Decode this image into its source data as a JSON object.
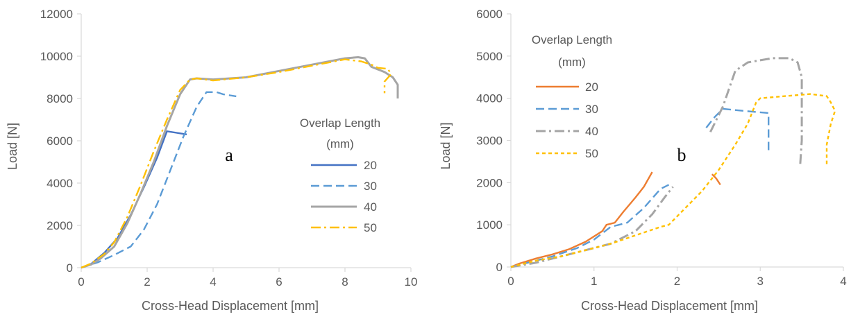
{
  "colors": {
    "20": "#4472C4",
    "30": "#5B9BD5",
    "40": "#A5A5A5",
    "50": "#FFC000",
    "20b": "#ED7D31",
    "axis": "#D9D9D9",
    "text": "#595959"
  },
  "chart_data": [
    {
      "type": "line",
      "panel_label": "a",
      "xlabel": "Cross-Head Displacement [mm]",
      "ylabel": "Load [N]",
      "xlim": [
        0,
        10
      ],
      "ylim": [
        0,
        12000
      ],
      "x_ticks": [
        0,
        2,
        4,
        6,
        8,
        10
      ],
      "y_ticks": [
        0,
        2000,
        4000,
        6000,
        8000,
        10000,
        12000
      ],
      "grid": false,
      "legend": {
        "title_line1": "Overlap Length",
        "title_line2": "(mm)",
        "placement": "center-right"
      },
      "series": [
        {
          "name": "20",
          "color_key": "20",
          "dash": "solid",
          "points": [
            [
              0,
              0
            ],
            [
              0.3,
              180
            ],
            [
              0.7,
              700
            ],
            [
              1.1,
              1400
            ],
            [
              1.5,
              2500
            ],
            [
              1.9,
              3800
            ],
            [
              2.3,
              5200
            ],
            [
              2.6,
              6450
            ],
            [
              3.0,
              6350
            ],
            [
              3.2,
              6300
            ]
          ]
        },
        {
          "name": "30",
          "color_key": "30",
          "dash": "dash",
          "points": [
            [
              0,
              0
            ],
            [
              0.5,
              250
            ],
            [
              1.0,
              600
            ],
            [
              1.5,
              1000
            ],
            [
              1.9,
              1800
            ],
            [
              2.3,
              3000
            ],
            [
              2.7,
              4600
            ],
            [
              3.1,
              6200
            ],
            [
              3.5,
              7600
            ],
            [
              3.8,
              8300
            ],
            [
              4.1,
              8300
            ],
            [
              4.3,
              8200
            ],
            [
              4.7,
              8100
            ]
          ]
        },
        {
          "name": "40",
          "color_key": "40",
          "dash": "solid",
          "points": [
            [
              0,
              0
            ],
            [
              0.3,
              150
            ],
            [
              0.6,
              450
            ],
            [
              1.0,
              1000
            ],
            [
              1.4,
              2100
            ],
            [
              1.8,
              3500
            ],
            [
              2.2,
              5000
            ],
            [
              2.6,
              6700
            ],
            [
              3.0,
              8200
            ],
            [
              3.3,
              8900
            ],
            [
              3.5,
              8950
            ],
            [
              4.0,
              8900
            ],
            [
              5.0,
              9000
            ],
            [
              6.0,
              9300
            ],
            [
              7.0,
              9600
            ],
            [
              8.0,
              9900
            ],
            [
              8.4,
              9950
            ],
            [
              8.6,
              9900
            ],
            [
              8.8,
              9500
            ],
            [
              9.2,
              9250
            ],
            [
              9.45,
              9000
            ],
            [
              9.6,
              8650
            ],
            [
              9.6,
              8000
            ]
          ]
        },
        {
          "name": "50",
          "color_key": "50",
          "dash": "dashdot",
          "points": [
            [
              0,
              0
            ],
            [
              0.3,
              200
            ],
            [
              0.7,
              650
            ],
            [
              1.0,
              1200
            ],
            [
              1.4,
              2400
            ],
            [
              1.8,
              3900
            ],
            [
              2.2,
              5500
            ],
            [
              2.6,
              7000
            ],
            [
              3.0,
              8400
            ],
            [
              3.3,
              8900
            ],
            [
              3.5,
              8950
            ],
            [
              4.0,
              8850
            ],
            [
              5.0,
              9000
            ],
            [
              6.0,
              9250
            ],
            [
              7.0,
              9550
            ],
            [
              8.0,
              9850
            ],
            [
              8.5,
              9750
            ],
            [
              8.8,
              9600
            ],
            [
              9.0,
              9450
            ],
            [
              9.3,
              9400
            ],
            [
              9.4,
              9150
            ],
            [
              9.2,
              8800
            ],
            [
              9.2,
              8250
            ]
          ]
        }
      ]
    },
    {
      "type": "line",
      "panel_label": "b",
      "xlabel": "Cross-Head Displacement [mm]",
      "ylabel": "Load [N]",
      "xlim": [
        0,
        4
      ],
      "ylim": [
        0,
        6000
      ],
      "x_ticks": [
        0,
        1,
        2,
        3,
        4
      ],
      "y_ticks": [
        0,
        1000,
        2000,
        3000,
        4000,
        5000,
        6000
      ],
      "grid": false,
      "legend": {
        "title_line1": "Overlap Length",
        "title_line2": "(mm)",
        "placement": "top-left"
      },
      "series": [
        {
          "name": "20",
          "color_key": "20b",
          "dash": "solid",
          "segments": [
            [
              [
                0,
                0
              ],
              [
                0.1,
                80
              ],
              [
                0.3,
                200
              ],
              [
                0.5,
                300
              ],
              [
                0.7,
                420
              ],
              [
                0.9,
                600
              ],
              [
                1.1,
                850
              ],
              [
                1.15,
                1000
              ],
              [
                1.25,
                1050
              ],
              [
                1.35,
                1300
              ],
              [
                1.5,
                1650
              ],
              [
                1.6,
                1900
              ],
              [
                1.7,
                2250
              ]
            ],
            [
              [
                2.42,
                2200
              ],
              [
                2.47,
                2100
              ],
              [
                2.52,
                1950
              ]
            ]
          ]
        },
        {
          "name": "30",
          "color_key": "30",
          "dash": "dash",
          "segments": [
            [
              [
                0,
                0
              ],
              [
                0.2,
                100
              ],
              [
                0.5,
                250
              ],
              [
                0.8,
                450
              ],
              [
                1.0,
                650
              ],
              [
                1.2,
                950
              ],
              [
                1.4,
                1050
              ],
              [
                1.6,
                1400
              ],
              [
                1.8,
                1850
              ],
              [
                1.9,
                1950
              ]
            ],
            [
              [
                2.35,
                3300
              ],
              [
                2.45,
                3550
              ],
              [
                2.55,
                3750
              ],
              [
                2.8,
                3700
              ],
              [
                3.1,
                3650
              ],
              [
                3.1,
                2700
              ]
            ]
          ]
        },
        {
          "name": "40",
          "color_key": "40",
          "dash": "dashdot",
          "segments": [
            [
              [
                0,
                0
              ],
              [
                0.3,
                100
              ],
              [
                0.6,
                250
              ],
              [
                0.9,
                400
              ],
              [
                1.2,
                550
              ],
              [
                1.5,
                850
              ],
              [
                1.7,
                1250
              ],
              [
                1.85,
                1650
              ],
              [
                1.95,
                1900
              ]
            ],
            [
              [
                2.4,
                3200
              ],
              [
                2.55,
                3800
              ],
              [
                2.7,
                4650
              ],
              [
                2.85,
                4850
              ],
              [
                3.0,
                4900
              ],
              [
                3.15,
                4950
              ],
              [
                3.35,
                4950
              ],
              [
                3.45,
                4850
              ],
              [
                3.5,
                4500
              ],
              [
                3.5,
                3000
              ],
              [
                3.48,
                2400
              ]
            ]
          ]
        },
        {
          "name": "50",
          "color_key": "50",
          "dash": "dot",
          "segments": [
            [
              [
                0,
                0
              ],
              [
                0.3,
                150
              ],
              [
                0.6,
                250
              ],
              [
                0.9,
                400
              ],
              [
                1.2,
                550
              ],
              [
                1.5,
                750
              ],
              [
                1.8,
                950
              ],
              [
                1.9,
                1000
              ],
              [
                2.1,
                1400
              ],
              [
                2.3,
                1800
              ],
              [
                2.5,
                2300
              ],
              [
                2.7,
                2900
              ],
              [
                2.85,
                3400
              ],
              [
                2.95,
                3900
              ],
              [
                3.0,
                4000
              ],
              [
                3.3,
                4050
              ],
              [
                3.6,
                4100
              ],
              [
                3.8,
                4050
              ],
              [
                3.85,
                3900
              ],
              [
                3.9,
                3700
              ],
              [
                3.85,
                3400
              ],
              [
                3.82,
                3100
              ],
              [
                3.8,
                2900
              ],
              [
                3.8,
                2400
              ]
            ]
          ]
        }
      ]
    }
  ]
}
